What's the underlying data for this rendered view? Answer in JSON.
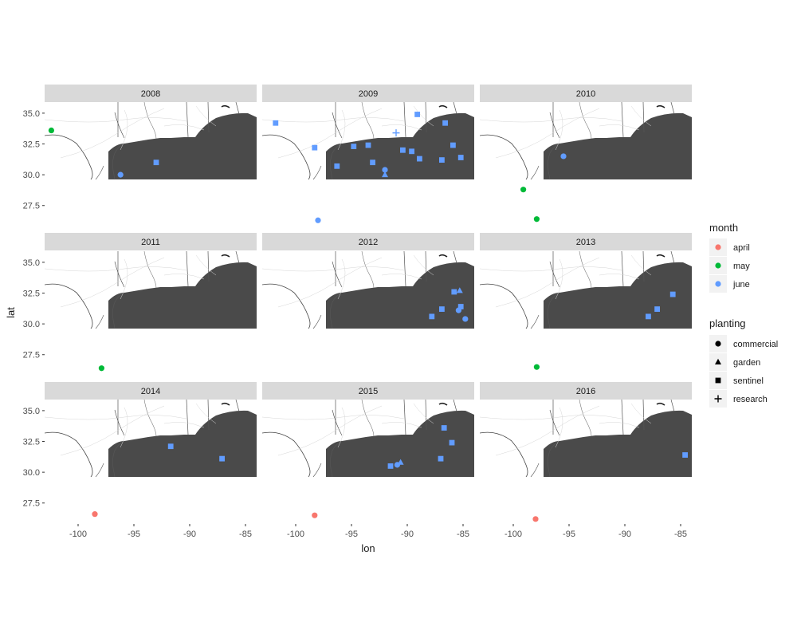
{
  "chart_data": {
    "type": "scatter",
    "subtype": "faceted map scatter (small multiples)",
    "xlabel": "lon",
    "ylabel": "lat",
    "xlim": [
      -103,
      -84
    ],
    "ylim": [
      25.8,
      35.9
    ],
    "x_ticks": [
      -100,
      -95,
      -90,
      -85
    ],
    "x_tick_labels": [
      "-100",
      "-95",
      "-90",
      "-85"
    ],
    "y_ticks": [
      27.5,
      30.0,
      32.5,
      35.0
    ],
    "y_tick_labels": [
      "27.5",
      "30.0",
      "32.5",
      "35.0"
    ],
    "facets": [
      "2008",
      "2009",
      "2010",
      "2011",
      "2012",
      "2013",
      "2014",
      "2015",
      "2016"
    ],
    "facet_layout": {
      "rows": 3,
      "cols": 3
    },
    "panel_background": "#ffffff",
    "strip_background": "#d9d9d9",
    "water_color": "#4a4a4a",
    "legend_placement": "right",
    "legends": [
      {
        "title": "month",
        "aesthetic": "color",
        "entries": [
          {
            "label": "april",
            "color": "#F8766D"
          },
          {
            "label": "may",
            "color": "#00BA38"
          },
          {
            "label": "june",
            "color": "#619CFF"
          }
        ]
      },
      {
        "title": "planting",
        "aesthetic": "shape",
        "entries": [
          {
            "label": "commercial",
            "shape": "circle"
          },
          {
            "label": "garden",
            "shape": "triangle"
          },
          {
            "label": "sentinel",
            "shape": "square"
          },
          {
            "label": "research",
            "shape": "plus"
          }
        ]
      }
    ],
    "points": [
      {
        "year": "2008",
        "lon": -102.4,
        "lat": 33.6,
        "month": "may",
        "planting": "commercial"
      },
      {
        "year": "2008",
        "lon": -96.2,
        "lat": 30.0,
        "month": "june",
        "planting": "commercial"
      },
      {
        "year": "2008",
        "lon": -93.0,
        "lat": 31.0,
        "month": "june",
        "planting": "sentinel"
      },
      {
        "year": "2009",
        "lon": -101.8,
        "lat": 34.2,
        "month": "june",
        "planting": "sentinel"
      },
      {
        "year": "2009",
        "lon": -98.3,
        "lat": 32.2,
        "month": "june",
        "planting": "sentinel"
      },
      {
        "year": "2009",
        "lon": -96.3,
        "lat": 30.7,
        "month": "june",
        "planting": "sentinel"
      },
      {
        "year": "2009",
        "lon": -94.8,
        "lat": 32.3,
        "month": "june",
        "planting": "sentinel"
      },
      {
        "year": "2009",
        "lon": -93.5,
        "lat": 32.4,
        "month": "june",
        "planting": "sentinel"
      },
      {
        "year": "2009",
        "lon": -93.1,
        "lat": 31.0,
        "month": "june",
        "planting": "sentinel"
      },
      {
        "year": "2009",
        "lon": -92.0,
        "lat": 30.4,
        "month": "june",
        "planting": "commercial"
      },
      {
        "year": "2009",
        "lon": -92.0,
        "lat": 30.0,
        "month": "june",
        "planting": "garden"
      },
      {
        "year": "2009",
        "lon": -91.0,
        "lat": 33.4,
        "month": "june",
        "planting": "research"
      },
      {
        "year": "2009",
        "lon": -90.4,
        "lat": 32.0,
        "month": "june",
        "planting": "sentinel"
      },
      {
        "year": "2009",
        "lon": -89.6,
        "lat": 31.9,
        "month": "june",
        "planting": "sentinel"
      },
      {
        "year": "2009",
        "lon": -89.1,
        "lat": 34.9,
        "month": "june",
        "planting": "sentinel"
      },
      {
        "year": "2009",
        "lon": -88.9,
        "lat": 31.3,
        "month": "june",
        "planting": "sentinel"
      },
      {
        "year": "2009",
        "lon": -86.9,
        "lat": 31.2,
        "month": "june",
        "planting": "sentinel"
      },
      {
        "year": "2009",
        "lon": -86.6,
        "lat": 34.2,
        "month": "june",
        "planting": "sentinel"
      },
      {
        "year": "2009",
        "lon": -85.9,
        "lat": 32.4,
        "month": "june",
        "planting": "sentinel"
      },
      {
        "year": "2009",
        "lon": -85.2,
        "lat": 31.4,
        "month": "june",
        "planting": "sentinel"
      },
      {
        "year": "2009",
        "lon": -98.0,
        "lat": 26.3,
        "month": "june",
        "planting": "commercial"
      },
      {
        "year": "2010",
        "lon": -95.5,
        "lat": 31.5,
        "month": "june",
        "planting": "commercial"
      },
      {
        "year": "2010",
        "lon": -99.1,
        "lat": 28.8,
        "month": "may",
        "planting": "commercial"
      },
      {
        "year": "2010",
        "lon": -97.9,
        "lat": 26.4,
        "month": "may",
        "planting": "commercial"
      },
      {
        "year": "2011",
        "lon": -97.9,
        "lat": 26.4,
        "month": "may",
        "planting": "commercial"
      },
      {
        "year": "2012",
        "lon": -85.3,
        "lat": 32.7,
        "month": "june",
        "planting": "garden"
      },
      {
        "year": "2012",
        "lon": -85.8,
        "lat": 32.6,
        "month": "june",
        "planting": "sentinel"
      },
      {
        "year": "2012",
        "lon": -85.2,
        "lat": 31.4,
        "month": "june",
        "planting": "sentinel"
      },
      {
        "year": "2012",
        "lon": -85.4,
        "lat": 31.1,
        "month": "june",
        "planting": "commercial"
      },
      {
        "year": "2012",
        "lon": -86.9,
        "lat": 31.2,
        "month": "june",
        "planting": "sentinel"
      },
      {
        "year": "2012",
        "lon": -87.8,
        "lat": 30.6,
        "month": "june",
        "planting": "sentinel"
      },
      {
        "year": "2012",
        "lon": -84.8,
        "lat": 30.4,
        "month": "june",
        "planting": "commercial"
      },
      {
        "year": "2013",
        "lon": -85.7,
        "lat": 32.4,
        "month": "june",
        "planting": "sentinel"
      },
      {
        "year": "2013",
        "lon": -87.1,
        "lat": 31.2,
        "month": "june",
        "planting": "sentinel"
      },
      {
        "year": "2013",
        "lon": -87.9,
        "lat": 30.6,
        "month": "june",
        "planting": "sentinel"
      },
      {
        "year": "2013",
        "lon": -97.9,
        "lat": 26.5,
        "month": "may",
        "planting": "commercial"
      },
      {
        "year": "2014",
        "lon": -91.7,
        "lat": 32.1,
        "month": "june",
        "planting": "sentinel"
      },
      {
        "year": "2014",
        "lon": -87.1,
        "lat": 31.1,
        "month": "june",
        "planting": "sentinel"
      },
      {
        "year": "2014",
        "lon": -98.5,
        "lat": 26.6,
        "month": "april",
        "planting": "commercial"
      },
      {
        "year": "2015",
        "lon": -86.7,
        "lat": 33.6,
        "month": "june",
        "planting": "sentinel"
      },
      {
        "year": "2015",
        "lon": -86.0,
        "lat": 32.4,
        "month": "june",
        "planting": "sentinel"
      },
      {
        "year": "2015",
        "lon": -87.0,
        "lat": 31.1,
        "month": "june",
        "planting": "sentinel"
      },
      {
        "year": "2015",
        "lon": -90.6,
        "lat": 30.8,
        "month": "june",
        "planting": "garden"
      },
      {
        "year": "2015",
        "lon": -90.9,
        "lat": 30.6,
        "month": "june",
        "planting": "commercial"
      },
      {
        "year": "2015",
        "lon": -91.5,
        "lat": 30.5,
        "month": "june",
        "planting": "sentinel"
      },
      {
        "year": "2015",
        "lon": -98.3,
        "lat": 26.5,
        "month": "april",
        "planting": "commercial"
      },
      {
        "year": "2016",
        "lon": -84.6,
        "lat": 31.4,
        "month": "june",
        "planting": "sentinel"
      },
      {
        "year": "2016",
        "lon": -98.0,
        "lat": 26.2,
        "month": "april",
        "planting": "commercial"
      }
    ]
  }
}
